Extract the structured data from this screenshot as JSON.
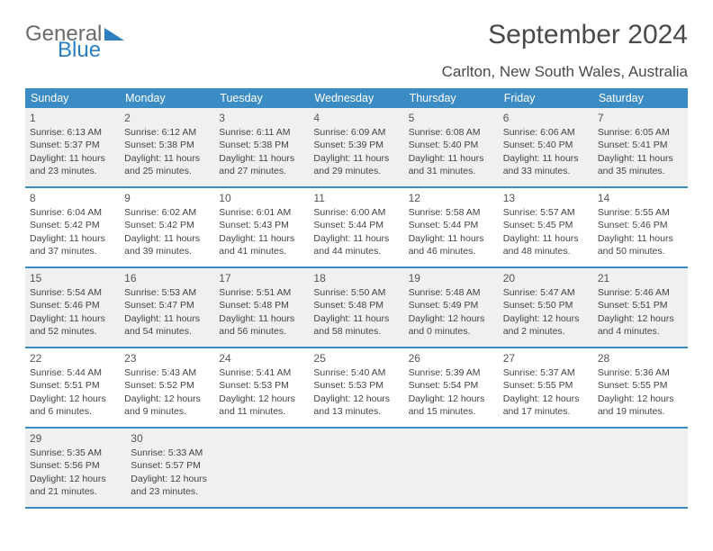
{
  "logo": {
    "general": "General",
    "blue": "Blue"
  },
  "title": "September 2024",
  "subtitle": "Carlton, New South Wales, Australia",
  "colors": {
    "header_bg": "#3b8bc4",
    "header_text": "#ffffff",
    "row_border": "#3b8bc4",
    "shaded_bg": "#f0f0f0",
    "text": "#444444",
    "logo_gray": "#6b6b6b",
    "logo_blue": "#2d7fbf",
    "background": "#ffffff"
  },
  "typography": {
    "title_fontsize": 30,
    "subtitle_fontsize": 17,
    "dow_fontsize": 12.5,
    "daynum_fontsize": 12,
    "body_fontsize": 10.5
  },
  "dow": [
    "Sunday",
    "Monday",
    "Tuesday",
    "Wednesday",
    "Thursday",
    "Friday",
    "Saturday"
  ],
  "weeks": [
    {
      "shaded": true,
      "days": [
        {
          "n": "1",
          "sr": "Sunrise: 6:13 AM",
          "ss": "Sunset: 5:37 PM",
          "d1": "Daylight: 11 hours",
          "d2": "and 23 minutes."
        },
        {
          "n": "2",
          "sr": "Sunrise: 6:12 AM",
          "ss": "Sunset: 5:38 PM",
          "d1": "Daylight: 11 hours",
          "d2": "and 25 minutes."
        },
        {
          "n": "3",
          "sr": "Sunrise: 6:11 AM",
          "ss": "Sunset: 5:38 PM",
          "d1": "Daylight: 11 hours",
          "d2": "and 27 minutes."
        },
        {
          "n": "4",
          "sr": "Sunrise: 6:09 AM",
          "ss": "Sunset: 5:39 PM",
          "d1": "Daylight: 11 hours",
          "d2": "and 29 minutes."
        },
        {
          "n": "5",
          "sr": "Sunrise: 6:08 AM",
          "ss": "Sunset: 5:40 PM",
          "d1": "Daylight: 11 hours",
          "d2": "and 31 minutes."
        },
        {
          "n": "6",
          "sr": "Sunrise: 6:06 AM",
          "ss": "Sunset: 5:40 PM",
          "d1": "Daylight: 11 hours",
          "d2": "and 33 minutes."
        },
        {
          "n": "7",
          "sr": "Sunrise: 6:05 AM",
          "ss": "Sunset: 5:41 PM",
          "d1": "Daylight: 11 hours",
          "d2": "and 35 minutes."
        }
      ]
    },
    {
      "shaded": false,
      "days": [
        {
          "n": "8",
          "sr": "Sunrise: 6:04 AM",
          "ss": "Sunset: 5:42 PM",
          "d1": "Daylight: 11 hours",
          "d2": "and 37 minutes."
        },
        {
          "n": "9",
          "sr": "Sunrise: 6:02 AM",
          "ss": "Sunset: 5:42 PM",
          "d1": "Daylight: 11 hours",
          "d2": "and 39 minutes."
        },
        {
          "n": "10",
          "sr": "Sunrise: 6:01 AM",
          "ss": "Sunset: 5:43 PM",
          "d1": "Daylight: 11 hours",
          "d2": "and 41 minutes."
        },
        {
          "n": "11",
          "sr": "Sunrise: 6:00 AM",
          "ss": "Sunset: 5:44 PM",
          "d1": "Daylight: 11 hours",
          "d2": "and 44 minutes."
        },
        {
          "n": "12",
          "sr": "Sunrise: 5:58 AM",
          "ss": "Sunset: 5:44 PM",
          "d1": "Daylight: 11 hours",
          "d2": "and 46 minutes."
        },
        {
          "n": "13",
          "sr": "Sunrise: 5:57 AM",
          "ss": "Sunset: 5:45 PM",
          "d1": "Daylight: 11 hours",
          "d2": "and 48 minutes."
        },
        {
          "n": "14",
          "sr": "Sunrise: 5:55 AM",
          "ss": "Sunset: 5:46 PM",
          "d1": "Daylight: 11 hours",
          "d2": "and 50 minutes."
        }
      ]
    },
    {
      "shaded": true,
      "days": [
        {
          "n": "15",
          "sr": "Sunrise: 5:54 AM",
          "ss": "Sunset: 5:46 PM",
          "d1": "Daylight: 11 hours",
          "d2": "and 52 minutes."
        },
        {
          "n": "16",
          "sr": "Sunrise: 5:53 AM",
          "ss": "Sunset: 5:47 PM",
          "d1": "Daylight: 11 hours",
          "d2": "and 54 minutes."
        },
        {
          "n": "17",
          "sr": "Sunrise: 5:51 AM",
          "ss": "Sunset: 5:48 PM",
          "d1": "Daylight: 11 hours",
          "d2": "and 56 minutes."
        },
        {
          "n": "18",
          "sr": "Sunrise: 5:50 AM",
          "ss": "Sunset: 5:48 PM",
          "d1": "Daylight: 11 hours",
          "d2": "and 58 minutes."
        },
        {
          "n": "19",
          "sr": "Sunrise: 5:48 AM",
          "ss": "Sunset: 5:49 PM",
          "d1": "Daylight: 12 hours",
          "d2": "and 0 minutes."
        },
        {
          "n": "20",
          "sr": "Sunrise: 5:47 AM",
          "ss": "Sunset: 5:50 PM",
          "d1": "Daylight: 12 hours",
          "d2": "and 2 minutes."
        },
        {
          "n": "21",
          "sr": "Sunrise: 5:46 AM",
          "ss": "Sunset: 5:51 PM",
          "d1": "Daylight: 12 hours",
          "d2": "and 4 minutes."
        }
      ]
    },
    {
      "shaded": false,
      "days": [
        {
          "n": "22",
          "sr": "Sunrise: 5:44 AM",
          "ss": "Sunset: 5:51 PM",
          "d1": "Daylight: 12 hours",
          "d2": "and 6 minutes."
        },
        {
          "n": "23",
          "sr": "Sunrise: 5:43 AM",
          "ss": "Sunset: 5:52 PM",
          "d1": "Daylight: 12 hours",
          "d2": "and 9 minutes."
        },
        {
          "n": "24",
          "sr": "Sunrise: 5:41 AM",
          "ss": "Sunset: 5:53 PM",
          "d1": "Daylight: 12 hours",
          "d2": "and 11 minutes."
        },
        {
          "n": "25",
          "sr": "Sunrise: 5:40 AM",
          "ss": "Sunset: 5:53 PM",
          "d1": "Daylight: 12 hours",
          "d2": "and 13 minutes."
        },
        {
          "n": "26",
          "sr": "Sunrise: 5:39 AM",
          "ss": "Sunset: 5:54 PM",
          "d1": "Daylight: 12 hours",
          "d2": "and 15 minutes."
        },
        {
          "n": "27",
          "sr": "Sunrise: 5:37 AM",
          "ss": "Sunset: 5:55 PM",
          "d1": "Daylight: 12 hours",
          "d2": "and 17 minutes."
        },
        {
          "n": "28",
          "sr": "Sunrise: 5:36 AM",
          "ss": "Sunset: 5:55 PM",
          "d1": "Daylight: 12 hours",
          "d2": "and 19 minutes."
        }
      ]
    },
    {
      "shaded": true,
      "days": [
        {
          "n": "29",
          "sr": "Sunrise: 5:35 AM",
          "ss": "Sunset: 5:56 PM",
          "d1": "Daylight: 12 hours",
          "d2": "and 21 minutes."
        },
        {
          "n": "30",
          "sr": "Sunrise: 5:33 AM",
          "ss": "Sunset: 5:57 PM",
          "d1": "Daylight: 12 hours",
          "d2": "and 23 minutes."
        },
        null,
        null,
        null,
        null,
        null
      ]
    }
  ]
}
